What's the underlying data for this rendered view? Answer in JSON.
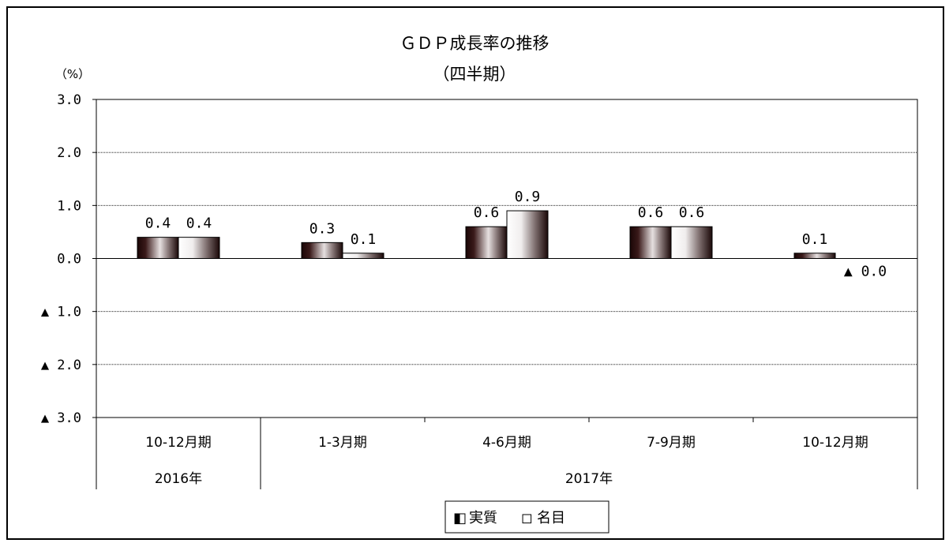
{
  "chart_data": {
    "type": "bar",
    "title": "ＧＤＰ成長率の推移",
    "subtitle": "（四半期）",
    "ylabel": "（%）",
    "ylim": [
      -3.0,
      3.0
    ],
    "yticks": [
      3.0,
      2.0,
      1.0,
      0.0,
      -1.0,
      -2.0,
      -3.0
    ],
    "ytick_labels": [
      "3.0",
      "2.0",
      "1.0",
      "0.0",
      "▲ 1.0",
      "▲ 2.0",
      "▲ 3.0"
    ],
    "grid": true,
    "categories": [
      "10-12月期",
      "1-3月期",
      "4-6月期",
      "7-9月期",
      "10-12月期"
    ],
    "year_groups": [
      {
        "label": "2016年",
        "span": 1
      },
      {
        "label": "2017年",
        "span": 4
      }
    ],
    "series": [
      {
        "name": "実質",
        "values": [
          0.4,
          0.3,
          0.6,
          0.6,
          0.1
        ],
        "labels": [
          "0.4",
          "0.3",
          "0.6",
          "0.6",
          "0.1"
        ]
      },
      {
        "name": "名目",
        "values": [
          0.4,
          0.1,
          0.9,
          0.6,
          0.0
        ],
        "labels": [
          "0.4",
          "0.1",
          "0.9",
          "0.6",
          "▲ 0.0"
        ]
      }
    ],
    "legend_position": "bottom",
    "legend": [
      {
        "symbol": "◧",
        "name": "実質"
      },
      {
        "symbol": "◻",
        "name": "名目"
      }
    ]
  }
}
